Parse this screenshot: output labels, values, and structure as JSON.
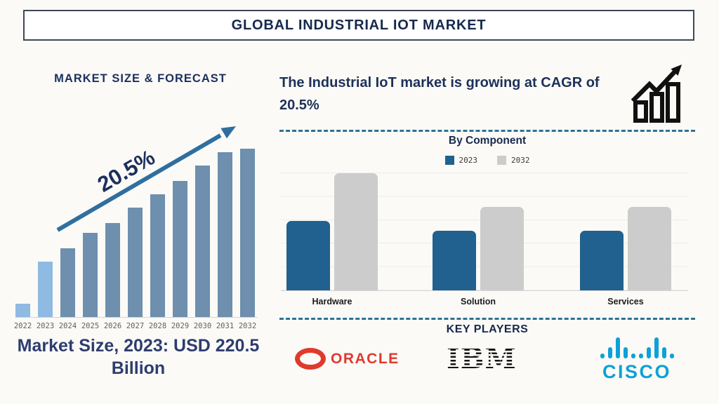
{
  "colors": {
    "navy": "#1d2f5e",
    "title_navy": "#16294d",
    "steel_blue": "#6e8fae",
    "light_blue": "#8fbae2",
    "arrow_blue": "#2f6f9f",
    "component_blue": "#20618f",
    "component_gray": "#cccccc",
    "dashed_line": "#2d7296",
    "oracle_red": "#e03a2e",
    "ibm_black": "#141414",
    "cisco_blue": "#0da1d8",
    "axis_text_gray": "#5f5f5f"
  },
  "header": {
    "title": "GLOBAL INDUSTRIAL IOT MARKET"
  },
  "left_panel": {
    "section_title": "MARKET SIZE & FORECAST",
    "growth_annotation": "20.5%",
    "caption": "Market Size, 2023: USD 220.5 Billion"
  },
  "right_panel": {
    "headline": "The Industrial IoT market is growing at CAGR of 20.5%",
    "key_players_heading": "KEY PLAYERS",
    "players": [
      {
        "name": "Oracle",
        "logo_text": "ORACLE"
      },
      {
        "name": "IBM",
        "logo_text": "IBM"
      },
      {
        "name": "Cisco",
        "logo_text": "CISCO"
      }
    ]
  },
  "chart_data": [
    {
      "type": "bar",
      "title": "MARKET SIZE & FORECAST",
      "categories": [
        "2022",
        "2023",
        "2024",
        "2025",
        "2026",
        "2027",
        "2028",
        "2029",
        "2030",
        "2031",
        "2032"
      ],
      "values": [
        8,
        33,
        41,
        50,
        56,
        65,
        73,
        81,
        90,
        98,
        100
      ],
      "value_units": "relative bar height, % of 2032 bar (no y-axis shown)",
      "known_point": {
        "category": "2023",
        "label": "USD 220.5 Billion"
      },
      "annotation": "20.5%",
      "highlight_categories": [
        "2022",
        "2023"
      ],
      "xlabel": "",
      "ylabel": "",
      "ylim": [
        0,
        100
      ],
      "grid": false,
      "legend": false
    },
    {
      "type": "bar",
      "title": "By Component",
      "categories": [
        "Hardware",
        "Solution",
        "Services"
      ],
      "series": [
        {
          "name": "2023",
          "values": [
            59,
            51,
            51
          ]
        },
        {
          "name": "2032",
          "values": [
            100,
            71,
            71
          ]
        }
      ],
      "value_units": "relative bar height, % of tallest bar (no y-axis shown)",
      "xlabel": "",
      "ylabel": "",
      "ylim": [
        0,
        100
      ],
      "grid": true,
      "legend_position": "top"
    }
  ]
}
